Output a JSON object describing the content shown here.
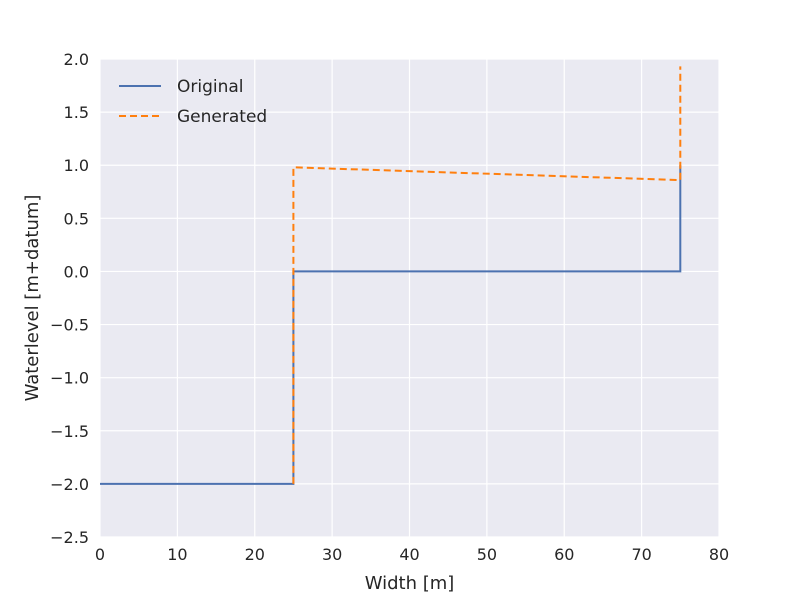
{
  "chart_data": {
    "type": "line",
    "xlabel": "Width [m]",
    "ylabel": "Waterlevel [m+datum]",
    "xlim": [
      0,
      80
    ],
    "ylim": [
      -2.5,
      2.0
    ],
    "xticks": [
      0,
      10,
      20,
      30,
      40,
      50,
      60,
      70,
      80
    ],
    "xtick_labels": [
      "0",
      "10",
      "20",
      "30",
      "40",
      "50",
      "60",
      "70",
      "80"
    ],
    "yticks": [
      -2.5,
      -2.0,
      -1.5,
      -1.0,
      -0.5,
      0.0,
      0.5,
      1.0,
      1.5,
      2.0
    ],
    "ytick_labels": [
      "−2.5",
      "−2.0",
      "−1.5",
      "−1.0",
      "−0.5",
      "0.0",
      "0.5",
      "1.0",
      "1.5",
      "2.0"
    ],
    "grid": true,
    "legend_position": "top-left",
    "series": [
      {
        "name": "Original",
        "color": "#4c72b0",
        "style": "solid",
        "x": [
          0,
          25,
          25,
          75,
          75
        ],
        "y": [
          -2.0,
          -2.0,
          0.0,
          0.0,
          1.0
        ]
      },
      {
        "name": "Generated",
        "color": "#ff7f0e",
        "style": "dashed",
        "x": [
          25,
          25,
          75,
          75
        ],
        "y": [
          -2.0,
          0.98,
          0.86,
          1.93
        ]
      }
    ]
  }
}
